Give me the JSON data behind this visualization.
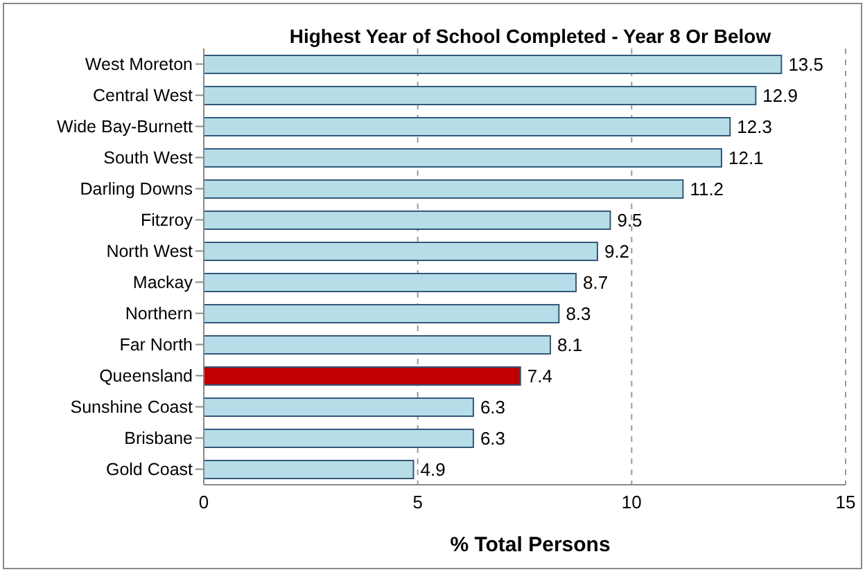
{
  "chart_data": {
    "type": "bar",
    "orientation": "horizontal",
    "title": "Highest Year of School Completed - Year 8 Or Below",
    "xlabel": "% Total Persons",
    "categories": [
      "West Moreton",
      "Central West",
      "Wide Bay-Burnett",
      "South West",
      "Darling Downs",
      "Fitzroy",
      "North West",
      "Mackay",
      "Northern",
      "Far North",
      "Queensland",
      "Sunshine Coast",
      "Brisbane",
      "Gold Coast"
    ],
    "values": [
      13.5,
      12.9,
      12.3,
      12.1,
      11.2,
      9.5,
      9.2,
      8.7,
      8.3,
      8.1,
      7.4,
      6.3,
      6.3,
      4.9
    ],
    "colors": [
      "#b7dee8",
      "#b7dee8",
      "#b7dee8",
      "#b7dee8",
      "#b7dee8",
      "#b7dee8",
      "#b7dee8",
      "#b7dee8",
      "#b7dee8",
      "#b7dee8",
      "#c00000",
      "#b7dee8",
      "#b7dee8",
      "#b7dee8"
    ],
    "xlim": [
      0,
      15
    ],
    "xticks": [
      0,
      5,
      10,
      15
    ],
    "grid": "x",
    "data_labels": true,
    "legend": false
  }
}
